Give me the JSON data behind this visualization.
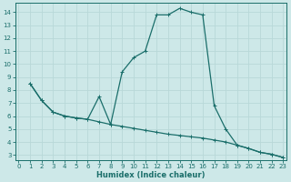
{
  "xlabel": "Humidex (Indice chaleur)",
  "bg_color": "#cde8e8",
  "grid_color": "#b8d8d8",
  "line_color": "#1a6e6a",
  "xlim": [
    -0.3,
    23.3
  ],
  "ylim": [
    2.6,
    14.7
  ],
  "xticks": [
    0,
    1,
    2,
    3,
    4,
    5,
    6,
    7,
    8,
    9,
    10,
    11,
    12,
    13,
    14,
    15,
    16,
    17,
    18,
    19,
    20,
    21,
    22,
    23
  ],
  "yticks": [
    3,
    4,
    5,
    6,
    7,
    8,
    9,
    10,
    11,
    12,
    13,
    14
  ],
  "line1_x": [
    1,
    2,
    3,
    4,
    5,
    6,
    7,
    8,
    9,
    10,
    11,
    12,
    13,
    14,
    15,
    16,
    17,
    18,
    19,
    20,
    21,
    22,
    23
  ],
  "line1_y": [
    8.5,
    7.2,
    6.3,
    6.0,
    5.85,
    5.75,
    5.55,
    5.35,
    5.2,
    5.05,
    4.9,
    4.75,
    4.6,
    4.5,
    4.4,
    4.3,
    4.15,
    4.0,
    3.75,
    3.5,
    3.2,
    3.05,
    2.8
  ],
  "line2_x": [
    1,
    2,
    3,
    4,
    5,
    6,
    7,
    8,
    9,
    10,
    11,
    12,
    13,
    14,
    15,
    16,
    17,
    18,
    19,
    20,
    21,
    22,
    23
  ],
  "line2_y": [
    8.5,
    7.2,
    6.3,
    6.0,
    5.85,
    5.75,
    7.5,
    5.35,
    9.4,
    10.5,
    11.0,
    13.8,
    13.8,
    14.3,
    14.0,
    13.8,
    6.8,
    5.0,
    3.75,
    3.5,
    3.2,
    3.05,
    2.8
  ],
  "tick_fontsize": 5,
  "xlabel_fontsize": 6
}
